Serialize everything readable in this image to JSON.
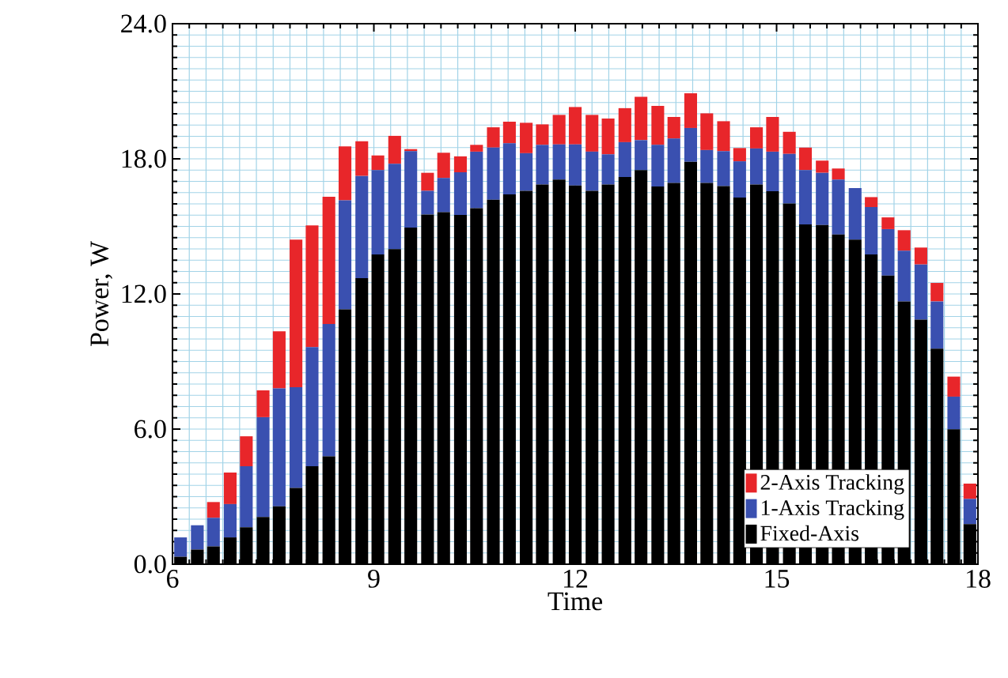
{
  "chart_data": {
    "type": "bar",
    "stacked": true,
    "xlabel": "Time",
    "ylabel": "Power, W",
    "x": [
      6.12,
      6.37,
      6.61,
      6.86,
      7.1,
      7.35,
      7.59,
      7.84,
      8.08,
      8.33,
      8.57,
      8.82,
      9.06,
      9.31,
      9.55,
      9.8,
      10.04,
      10.29,
      10.53,
      10.78,
      11.02,
      11.27,
      11.51,
      11.76,
      12.0,
      12.25,
      12.49,
      12.74,
      12.98,
      13.23,
      13.47,
      13.72,
      13.96,
      14.21,
      14.45,
      14.7,
      14.94,
      15.19,
      15.43,
      15.68,
      15.92,
      16.17,
      16.41,
      16.66,
      16.9,
      17.15,
      17.39,
      17.64,
      17.88
    ],
    "series": [
      {
        "name": "Fixed-Axis",
        "color": "#000000",
        "values": [
          0.33,
          0.65,
          0.79,
          1.19,
          1.64,
          2.1,
          2.57,
          3.39,
          4.35,
          4.79,
          11.32,
          12.7,
          13.75,
          13.99,
          14.95,
          15.53,
          15.63,
          15.51,
          15.81,
          16.18,
          16.42,
          16.58,
          16.86,
          17.08,
          16.82,
          16.58,
          16.86,
          17.19,
          17.5,
          16.77,
          16.93,
          17.87,
          16.93,
          16.79,
          16.28,
          16.86,
          16.56,
          16.02,
          15.09,
          15.06,
          14.64,
          14.41,
          13.75,
          12.82,
          11.67,
          10.86,
          9.57,
          5.99,
          1.78
        ]
      },
      {
        "name": "1-Axis Tracking",
        "color": "#3a50b0",
        "values": [
          0.86,
          1.08,
          1.27,
          1.48,
          2.71,
          4.43,
          5.24,
          4.47,
          5.29,
          5.88,
          4.84,
          4.54,
          3.75,
          3.79,
          3.39,
          1.05,
          1.52,
          1.89,
          2.51,
          2.32,
          2.27,
          1.67,
          1.76,
          1.56,
          1.82,
          1.74,
          1.34,
          1.55,
          1.33,
          1.85,
          1.97,
          1.5,
          1.46,
          1.55,
          1.61,
          1.6,
          1.76,
          2.2,
          2.41,
          2.32,
          2.44,
          2.29,
          2.11,
          2.06,
          2.25,
          2.45,
          2.1,
          1.45,
          1.12
        ]
      },
      {
        "name": "2-Axis Tracking",
        "color": "#e8262a",
        "values": [
          0,
          0,
          0.7,
          1.4,
          1.33,
          1.19,
          2.53,
          6.55,
          5.4,
          5.65,
          2.39,
          1.54,
          0.65,
          1.24,
          0.09,
          0.8,
          1.12,
          0.71,
          0.3,
          0.9,
          0.96,
          1.35,
          0.91,
          1.31,
          1.66,
          1.63,
          1.59,
          1.51,
          1.92,
          1.73,
          0.96,
          1.54,
          1.63,
          1.33,
          0.59,
          0.94,
          1.54,
          0.98,
          1.0,
          0.54,
          0.49,
          0,
          0.44,
          0.52,
          0.91,
          0.75,
          0.82,
          0.89,
          0.68
        ]
      }
    ],
    "xlim": [
      6,
      18
    ],
    "xticks": [
      6,
      9,
      12,
      15,
      18
    ],
    "ylim": [
      0,
      24
    ],
    "yticks": [
      {
        "value": 0,
        "label": "0.0"
      },
      {
        "value": 6,
        "label": "6.0"
      },
      {
        "value": 12,
        "label": "12.0"
      },
      {
        "value": 18,
        "label": "18.0"
      },
      {
        "value": 24,
        "label": "24.0"
      }
    ],
    "grid": true,
    "legend": "bottom right"
  }
}
